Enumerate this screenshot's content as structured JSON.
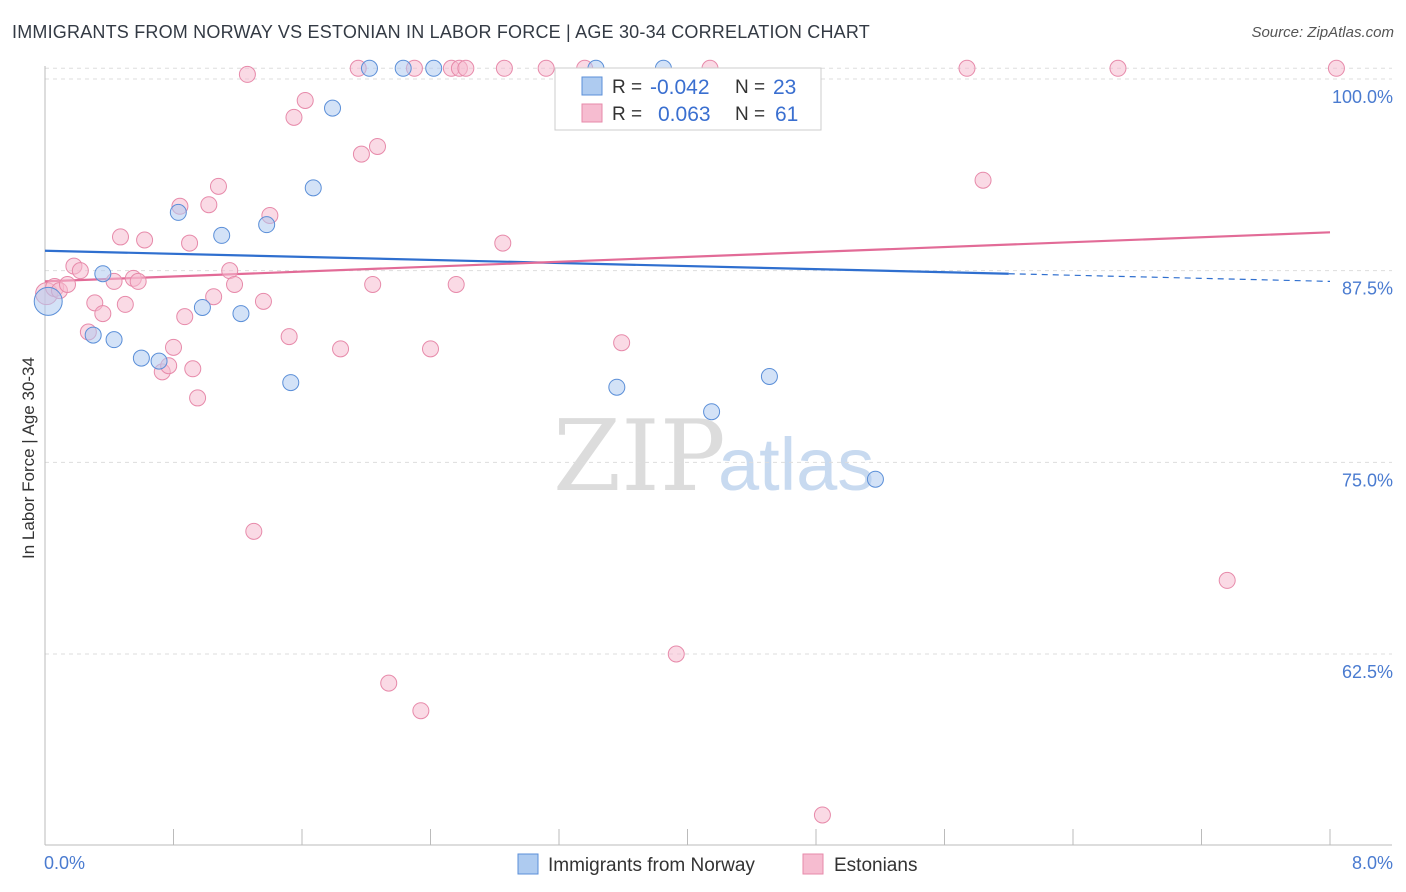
{
  "title": "IMMIGRANTS FROM NORWAY VS ESTONIAN IN LABOR FORCE | AGE 30-34 CORRELATION CHART",
  "source": "Source: ZipAtlas.com",
  "watermark": {
    "zip": "ZIP",
    "atlas": "atlas"
  },
  "colors": {
    "blue_fill": "#aecbf0",
    "blue_stroke": "#5b8fd8",
    "blue_line": "#2f6fcf",
    "pink_fill": "#f6bcd0",
    "pink_stroke": "#e78aaa",
    "pink_line": "#e26b97",
    "grid": "#dddddd",
    "axis_text": "#4a7bd0"
  },
  "legend": {
    "rows": [
      {
        "r_label": "R =",
        "r_value": "-0.042",
        "n_label": "N =",
        "n_value": "23"
      },
      {
        "r_label": "R =",
        "r_value": "0.063",
        "n_label": "N =",
        "n_value": "61"
      }
    ]
  },
  "bottom_legend": {
    "series1": "Immigrants from Norway",
    "series2": "Estonians"
  },
  "chart_data": {
    "type": "scatter",
    "title": "IMMIGRANTS FROM NORWAY VS ESTONIAN IN LABOR FORCE | AGE 30-34 CORRELATION CHART",
    "xlabel": "",
    "ylabel": "In Labor Force | Age 30-34",
    "xlim": [
      0,
      8
    ],
    "ylim": [
      51.5,
      102.5
    ],
    "x_tick_labels": [
      "0.0%",
      "8.0%"
    ],
    "y_ticks": [
      62.5,
      75.0,
      87.5,
      100.0
    ],
    "y_tick_labels": [
      "62.5%",
      "75.0%",
      "87.5%",
      "100.0%"
    ],
    "grid": true,
    "series": [
      {
        "name": "Immigrants from Norway",
        "r": -0.042,
        "n": 23,
        "trend": {
          "x0": 0.0,
          "y0": 88.8,
          "x1": 6.0,
          "y1": 87.3,
          "dash_to": 8.0,
          "dash_y": 86.8
        },
        "points": [
          [
            0.02,
            85.5,
            28
          ],
          [
            0.36,
            87.3,
            16
          ],
          [
            0.3,
            83.3,
            16
          ],
          [
            0.43,
            83.0,
            16
          ],
          [
            0.6,
            81.8,
            16
          ],
          [
            0.71,
            81.6,
            16
          ],
          [
            0.83,
            91.3,
            16
          ],
          [
            0.98,
            85.1,
            16
          ],
          [
            1.1,
            89.8,
            16
          ],
          [
            1.22,
            84.7,
            16
          ],
          [
            1.38,
            90.5,
            16
          ],
          [
            1.53,
            80.2,
            16
          ],
          [
            1.67,
            92.9,
            16
          ],
          [
            1.79,
            98.1,
            16
          ],
          [
            2.02,
            100.7,
            16
          ],
          [
            2.23,
            100.7,
            16
          ],
          [
            2.42,
            100.7,
            16
          ],
          [
            3.43,
            100.7,
            16
          ],
          [
            3.85,
            100.7,
            16
          ],
          [
            3.56,
            79.9,
            16
          ],
          [
            4.15,
            78.3,
            16
          ],
          [
            4.51,
            80.6,
            16
          ],
          [
            5.17,
            73.9,
            16
          ]
        ]
      },
      {
        "name": "Estonians",
        "r": 0.063,
        "n": 61,
        "trend": {
          "x0": 0.0,
          "y0": 86.8,
          "x1": 8.0,
          "y1": 90.0
        },
        "points": [
          [
            0.01,
            86.0,
            22
          ],
          [
            0.06,
            86.4,
            18
          ],
          [
            0.09,
            86.2,
            16
          ],
          [
            0.14,
            86.6,
            16
          ],
          [
            0.18,
            87.8,
            16
          ],
          [
            0.22,
            87.5,
            16
          ],
          [
            0.27,
            83.5,
            16
          ],
          [
            0.31,
            85.4,
            16
          ],
          [
            0.36,
            84.7,
            16
          ],
          [
            0.43,
            86.8,
            16
          ],
          [
            0.47,
            89.7,
            16
          ],
          [
            0.5,
            85.3,
            16
          ],
          [
            0.55,
            87.0,
            16
          ],
          [
            0.58,
            86.8,
            16
          ],
          [
            0.62,
            89.5,
            16
          ],
          [
            0.73,
            80.9,
            16
          ],
          [
            0.77,
            81.3,
            16
          ],
          [
            0.8,
            82.5,
            16
          ],
          [
            0.84,
            91.7,
            16
          ],
          [
            0.87,
            84.5,
            16
          ],
          [
            0.9,
            89.3,
            16
          ],
          [
            0.92,
            81.1,
            16
          ],
          [
            0.95,
            79.2,
            16
          ],
          [
            1.02,
            91.8,
            16
          ],
          [
            1.05,
            85.8,
            16
          ],
          [
            1.08,
            93.0,
            16
          ],
          [
            1.15,
            87.5,
            16
          ],
          [
            1.18,
            86.6,
            16
          ],
          [
            1.26,
            100.3,
            16
          ],
          [
            1.3,
            70.5,
            16
          ],
          [
            1.36,
            85.5,
            16
          ],
          [
            1.4,
            91.1,
            16
          ],
          [
            1.52,
            83.2,
            16
          ],
          [
            1.55,
            97.5,
            16
          ],
          [
            1.62,
            98.6,
            16
          ],
          [
            1.84,
            82.4,
            16
          ],
          [
            1.95,
            100.7,
            16
          ],
          [
            1.97,
            95.1,
            16
          ],
          [
            2.04,
            86.6,
            16
          ],
          [
            2.07,
            95.6,
            16
          ],
          [
            2.14,
            60.6,
            16
          ],
          [
            2.3,
            100.7,
            16
          ],
          [
            2.34,
            58.8,
            16
          ],
          [
            2.4,
            82.4,
            16
          ],
          [
            2.53,
            100.7,
            16
          ],
          [
            2.56,
            86.6,
            16
          ],
          [
            2.58,
            100.7,
            16
          ],
          [
            2.62,
            100.7,
            16
          ],
          [
            2.85,
            89.3,
            16
          ],
          [
            2.86,
            100.7,
            16
          ],
          [
            3.12,
            100.7,
            16
          ],
          [
            3.36,
            100.7,
            16
          ],
          [
            3.59,
            82.8,
            16
          ],
          [
            3.93,
            62.5,
            16
          ],
          [
            4.14,
            100.7,
            16
          ],
          [
            4.84,
            52.0,
            16
          ],
          [
            5.74,
            100.7,
            16
          ],
          [
            5.84,
            93.4,
            16
          ],
          [
            6.68,
            100.7,
            16
          ],
          [
            7.36,
            67.3,
            16
          ],
          [
            8.04,
            100.7,
            16
          ]
        ]
      }
    ]
  }
}
